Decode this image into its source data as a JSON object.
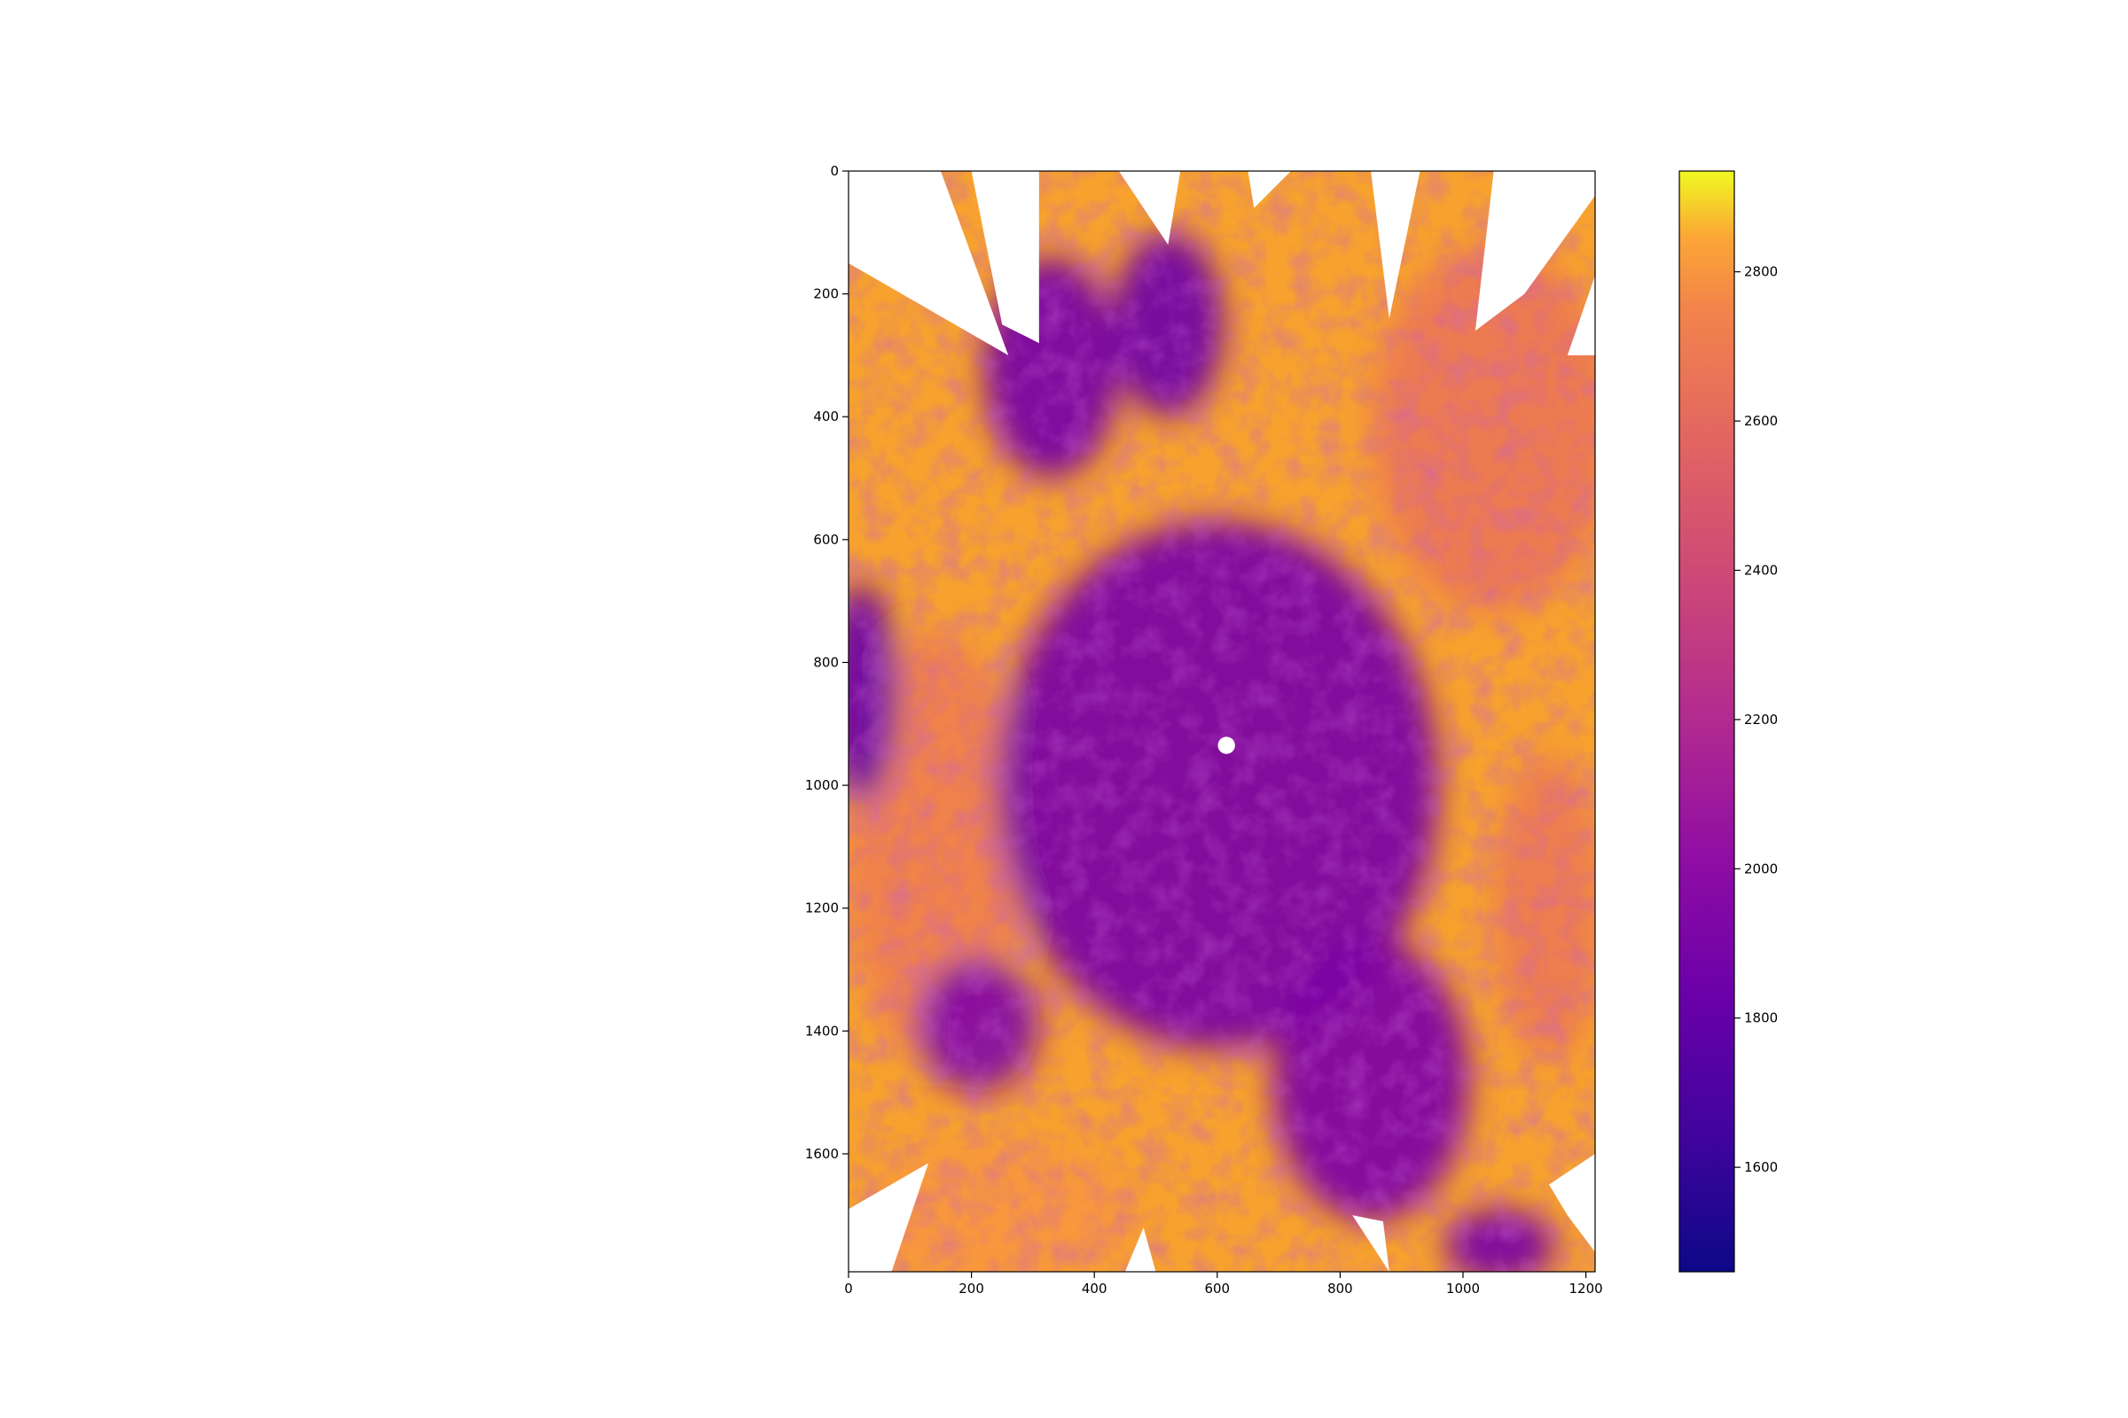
{
  "chart_data": {
    "type": "heatmap",
    "title": "",
    "xlabel": "",
    "ylabel": "",
    "x_ticks": [
      0,
      200,
      400,
      600,
      800,
      1000,
      1200
    ],
    "y_ticks": [
      0,
      200,
      400,
      600,
      800,
      1000,
      1200,
      1400,
      1600
    ],
    "xlim": [
      0,
      1215
    ],
    "ylim": [
      1792,
      0
    ],
    "image_extent": {
      "cols": 1215,
      "rows": 1792
    },
    "colormap": "plasma",
    "colorbar": {
      "range": [
        1460,
        2935
      ],
      "ticks": [
        1600,
        1800,
        2000,
        2200,
        2400,
        2600,
        2800
      ]
    },
    "no_data_color": "#ffffff",
    "overview": {
      "low_regions": [
        {
          "cx": 600,
          "cy": 1000,
          "rx": 360,
          "ry": 430,
          "value": 1900
        },
        {
          "cx": 330,
          "cy": 320,
          "rx": 110,
          "ry": 180,
          "value": 1880
        },
        {
          "cx": 520,
          "cy": 250,
          "rx": 90,
          "ry": 150,
          "value": 1850
        },
        {
          "cx": 850,
          "cy": 1480,
          "rx": 160,
          "ry": 230,
          "value": 1920
        },
        {
          "cx": 20,
          "cy": 850,
          "rx": 60,
          "ry": 180,
          "value": 1820
        },
        {
          "cx": 210,
          "cy": 1390,
          "rx": 100,
          "ry": 110,
          "value": 1950
        },
        {
          "cx": 1060,
          "cy": 1750,
          "rx": 90,
          "ry": 60,
          "value": 1900
        }
      ],
      "high_regions": [
        {
          "cx": 1050,
          "cy": 420,
          "rx": 200,
          "ry": 300,
          "value": 2680
        },
        {
          "cx": 140,
          "cy": 1100,
          "rx": 150,
          "ry": 350,
          "value": 2720
        },
        {
          "cx": 250,
          "cy": 1700,
          "rx": 220,
          "ry": 120,
          "value": 2800
        },
        {
          "cx": 1140,
          "cy": 1200,
          "rx": 90,
          "ry": 250,
          "value": 2700
        }
      ],
      "mask_hole": {
        "x": 615,
        "y": 935,
        "r": 14
      }
    }
  }
}
